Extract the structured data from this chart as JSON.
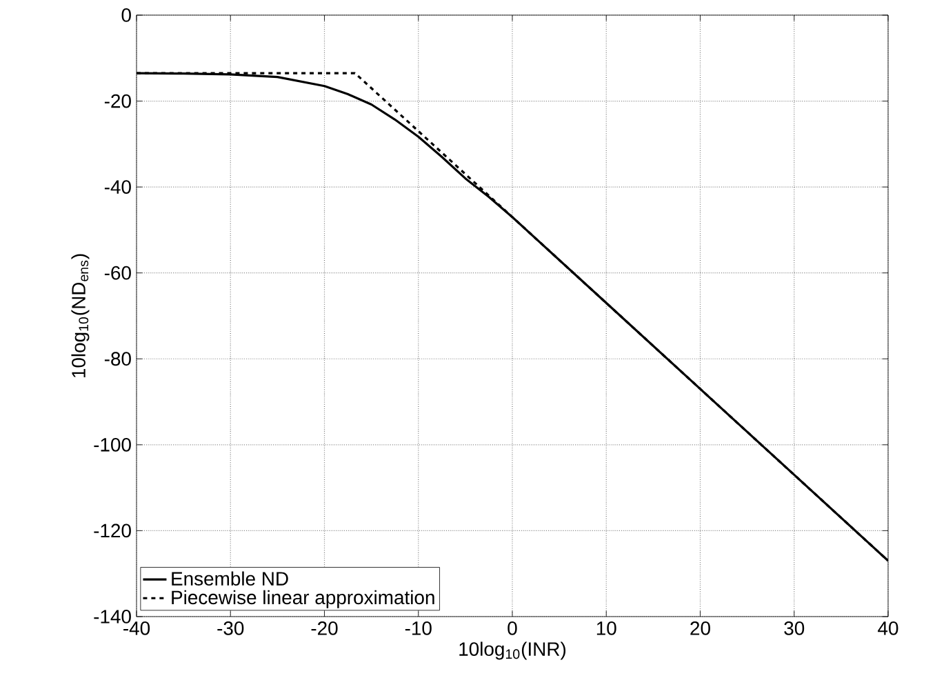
{
  "chart_data": {
    "type": "line",
    "xlabel": "10log$_{10}$(INR)",
    "ylabel": "10log$_{10}$(ND$_{ens}$)",
    "xlim": [
      -40,
      40
    ],
    "ylim": [
      -140,
      0
    ],
    "xticks": [
      -40,
      -30,
      -20,
      -10,
      0,
      10,
      20,
      30,
      40
    ],
    "yticks": [
      -140,
      -120,
      -100,
      -80,
      -60,
      -40,
      -20,
      0
    ],
    "grid": true,
    "legend": "bottom left",
    "series": [
      {
        "name": "Ensemble ND",
        "color": "#000000",
        "line_style": "solid",
        "x": [
          -40,
          -35,
          -30,
          -25,
          -20,
          -17.5,
          -15,
          -12.5,
          -10,
          -7.5,
          -5,
          -2.5,
          0,
          10,
          20,
          30,
          40
        ],
        "values": [
          -13.5,
          -13.6,
          -13.8,
          -14.4,
          -16.5,
          -18.4,
          -20.8,
          -24.3,
          -28.3,
          -33,
          -38,
          -42.3,
          -47,
          -67,
          -87,
          -107,
          -127
        ]
      },
      {
        "name": "Piecewise linear approximation",
        "color": "#000000",
        "line_style": "dashed",
        "x": [
          -40,
          -16.75,
          40
        ],
        "values": [
          -13.5,
          -13.5,
          -127
        ]
      }
    ]
  }
}
